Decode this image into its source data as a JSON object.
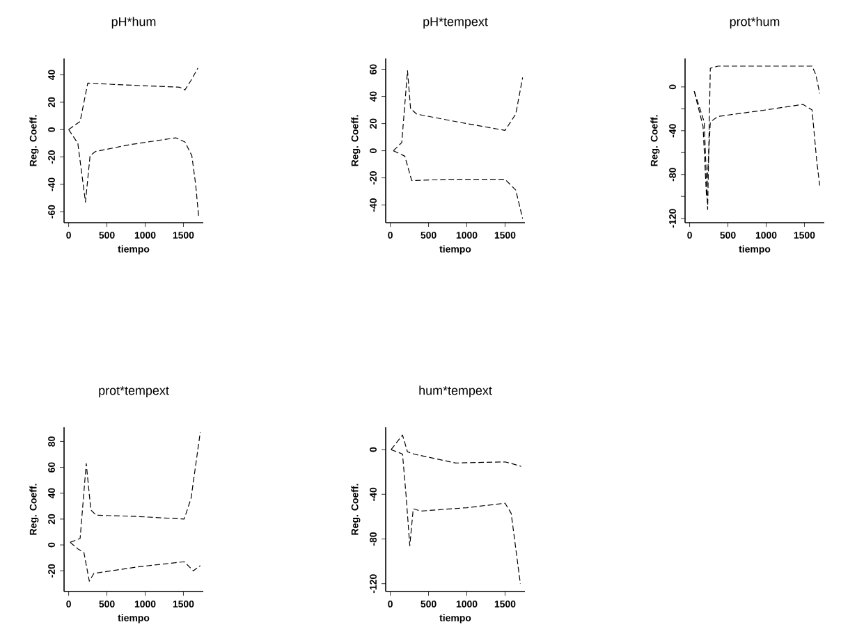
{
  "chart_data": [
    {
      "type": "line",
      "title": "pH*hum",
      "xlabel": "tiempo",
      "ylabel": "Reg. Coeff.",
      "line_style": "dashed",
      "xlim": [
        -60,
        1760
      ],
      "ylim": [
        -68,
        52
      ],
      "xticks": [
        0,
        500,
        1000,
        1500
      ],
      "yticks": [
        -60,
        -40,
        -20,
        0,
        20,
        40
      ],
      "series": [
        {
          "color": "#000000",
          "x": [
            0,
            150,
            250,
            600,
            1000,
            1450,
            1520,
            1600,
            1690
          ],
          "values": [
            0,
            6,
            34,
            33,
            32,
            31,
            29,
            36,
            45
          ]
        },
        {
          "color": "#000000",
          "x": [
            0,
            120,
            220,
            280,
            350,
            800,
            1400,
            1520,
            1610,
            1660,
            1700
          ],
          "values": [
            0,
            -10,
            -53,
            -19,
            -16,
            -11,
            -6,
            -9,
            -19,
            -40,
            -64
          ]
        }
      ]
    },
    {
      "type": "line",
      "title": "pH*tempext",
      "xlabel": "tiempo",
      "ylabel": "Reg. Coeff.",
      "line_style": "dashed",
      "xlim": [
        -60,
        1760
      ],
      "ylim": [
        -53,
        68
      ],
      "xticks": [
        0,
        500,
        1000,
        1500
      ],
      "yticks": [
        -40,
        -20,
        0,
        20,
        40,
        60
      ],
      "series": [
        {
          "color": "#000000",
          "x": [
            40,
            150,
            225,
            265,
            345,
            900,
            1500,
            1640,
            1730
          ],
          "values": [
            0,
            6,
            59,
            31,
            27,
            21,
            15,
            27,
            54
          ]
        },
        {
          "color": "#000000",
          "x": [
            40,
            190,
            280,
            800,
            1500,
            1640,
            1730
          ],
          "values": [
            0,
            -4,
            -22,
            -21,
            -21,
            -29,
            -50
          ]
        }
      ]
    },
    {
      "type": "line",
      "title": "prot*hum",
      "xlabel": "tiempo",
      "ylabel": "Reg. Coeff.",
      "line_style": "dashed",
      "xlim": [
        -60,
        1760
      ],
      "ylim": [
        -124,
        26
      ],
      "xticks": [
        0,
        500,
        1000,
        1500
      ],
      "yticks": [
        {
          "value": -120,
          "label": "-120"
        },
        {
          "value": -100,
          "label": null
        },
        {
          "value": -80,
          "label": "-80"
        },
        {
          "value": -60,
          "label": null
        },
        {
          "value": -40,
          "label": "-40"
        },
        {
          "value": -20,
          "label": null
        },
        {
          "value": 0,
          "label": "0"
        }
      ],
      "series": [
        {
          "color": "#000000",
          "x": [
            60,
            190,
            235,
            270,
            370,
            1000,
            1600,
            1650,
            1700
          ],
          "values": [
            -4,
            -32,
            -112,
            17,
            19,
            19,
            19,
            11,
            -6
          ]
        },
        {
          "color": "#000000",
          "x": [
            60,
            175,
            220,
            270,
            370,
            1000,
            1480,
            1600,
            1660,
            1700
          ],
          "values": [
            -4,
            -36,
            -100,
            -32,
            -27,
            -21,
            -16,
            -21,
            -67,
            -90
          ]
        }
      ]
    },
    {
      "type": "line",
      "title": "prot*tempext",
      "xlabel": "tiempo",
      "ylabel": "Reg. Coeff.",
      "line_style": "dashed",
      "xlim": [
        -60,
        1760
      ],
      "ylim": [
        -36,
        91
      ],
      "xticks": [
        0,
        500,
        1000,
        1500
      ],
      "yticks": [
        -20,
        0,
        20,
        40,
        60,
        80
      ],
      "series": [
        {
          "color": "#000000",
          "x": [
            20,
            150,
            230,
            290,
            360,
            900,
            1510,
            1600,
            1720
          ],
          "values": [
            2,
            5,
            63,
            27,
            23,
            22,
            20,
            36,
            87
          ]
        },
        {
          "color": "#000000",
          "x": [
            20,
            120,
            200,
            270,
            330,
            900,
            1510,
            1630,
            1720
          ],
          "values": [
            2,
            -3,
            -6,
            -28,
            -22,
            -17,
            -13,
            -20,
            -16
          ]
        }
      ]
    },
    {
      "type": "line",
      "title": "hum*tempext",
      "xlabel": "tiempo",
      "ylabel": "Reg. Coeff.",
      "line_style": "dashed",
      "xlim": [
        -60,
        1760
      ],
      "ylim": [
        -127,
        20
      ],
      "xticks": [
        0,
        500,
        1000,
        1500
      ],
      "yticks": [
        -120,
        -80,
        -40,
        0
      ],
      "series": [
        {
          "color": "#000000",
          "x": [
            10,
            160,
            225,
            310,
            855,
            1500,
            1610,
            1710
          ],
          "values": [
            0,
            13,
            -2,
            -4,
            -12,
            -11,
            -13,
            -15
          ]
        },
        {
          "color": "#000000",
          "x": [
            10,
            160,
            205,
            255,
            300,
            400,
            1000,
            1500,
            1580,
            1700
          ],
          "values": [
            0,
            -4,
            -40,
            -86,
            -53,
            -55,
            -52,
            -48,
            -57,
            -120
          ]
        }
      ]
    }
  ]
}
